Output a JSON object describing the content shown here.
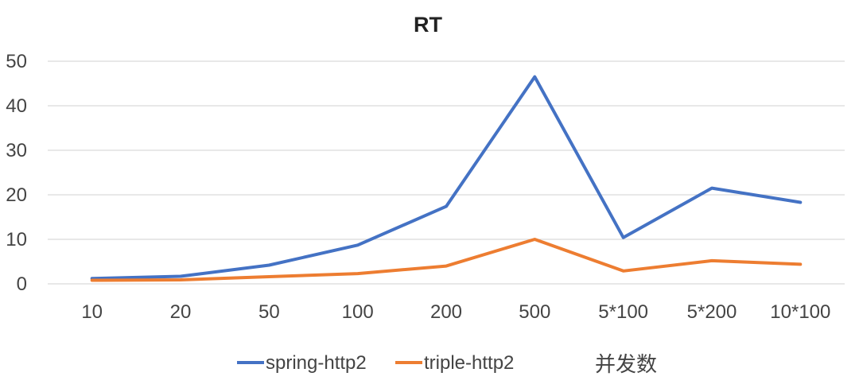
{
  "chart_data": {
    "type": "line",
    "title": "RT",
    "xlabel": "并发数",
    "ylabel": "",
    "categories": [
      "10",
      "20",
      "50",
      "100",
      "200",
      "500",
      "5*100",
      "5*200",
      "10*100"
    ],
    "ylim": [
      0,
      50
    ],
    "yticks": [
      0,
      10,
      20,
      30,
      40,
      50
    ],
    "grid": true,
    "legend_position": "bottom",
    "series": [
      {
        "name": "spring-http2",
        "color": "#4472C4",
        "values": [
          1.2,
          1.7,
          4.2,
          8.7,
          17.4,
          46.5,
          10.4,
          21.5,
          18.3
        ]
      },
      {
        "name": "triple-http2",
        "color": "#ED7D31",
        "values": [
          0.8,
          0.9,
          1.6,
          2.3,
          4.0,
          10.0,
          2.9,
          5.2,
          4.4
        ]
      }
    ]
  }
}
